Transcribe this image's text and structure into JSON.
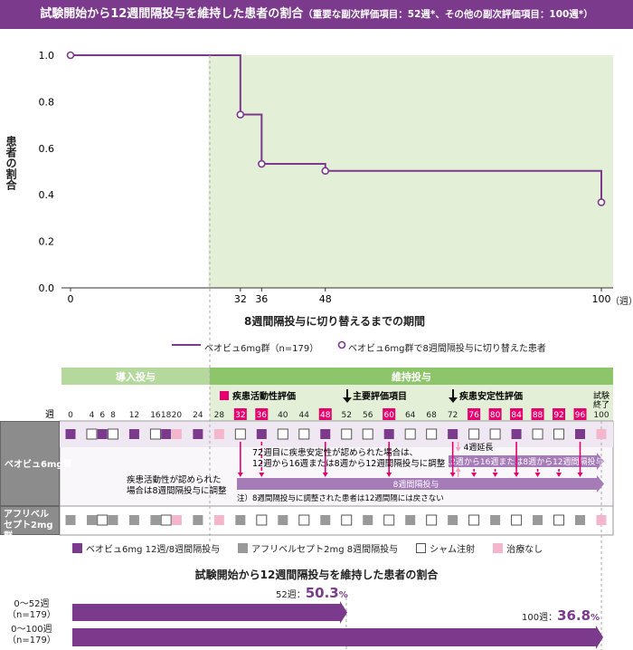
{
  "title": {
    "main": "試験開始から12週間隔投与を維持した患者の割合",
    "sub": "（重要な副次評価項目：52週*、その他の副次評価項目：100週*）"
  },
  "chart_data": {
    "type": "line",
    "ylabel": "患者の割合",
    "xlabel": "8週間隔投与に切り替えるまでの期間",
    "x_unit": "（週）",
    "ylim": [
      0,
      1.0
    ],
    "xlim": [
      0,
      100
    ],
    "yticks": [
      "0.0",
      "0.2",
      "0.4",
      "0.6",
      "0.8",
      "1.0"
    ],
    "xticks": [
      "0",
      "32",
      "36",
      "48",
      "100"
    ],
    "shaded_region_weeks": [
      26,
      100
    ],
    "series": [
      {
        "name": "ベオビュ6mg群（n=179）",
        "color": "#7b3a8c",
        "steps": [
          [
            0,
            1.0
          ],
          [
            32,
            0.745
          ],
          [
            36,
            0.533
          ],
          [
            48,
            0.503
          ],
          [
            100,
            0.368
          ]
        ]
      }
    ],
    "markers": {
      "name": "ベオビュ6mg群で8週間隔投与に切り替えた患者",
      "points": [
        [
          0,
          1.0
        ],
        [
          32,
          0.745
        ],
        [
          36,
          0.533
        ],
        [
          48,
          0.503
        ],
        [
          100,
          0.368
        ]
      ]
    }
  },
  "schedule": {
    "phase_induction": "導入投与",
    "phase_maintenance": "維持投与",
    "week_label": "週",
    "eval_activity": "疾患活動性評価",
    "primary": "主要評価項目",
    "eval_stability": "疾患安定性評価",
    "end": "試験\n終了",
    "weeks": [
      0,
      4,
      6,
      8,
      12,
      16,
      18,
      20,
      24,
      28,
      32,
      36,
      40,
      44,
      48,
      52,
      56,
      60,
      64,
      68,
      72,
      76,
      80,
      84,
      88,
      92,
      96,
      100
    ],
    "highlighted_weeks": [
      32,
      36,
      48,
      60,
      76,
      80,
      84,
      88,
      92,
      96
    ],
    "rows": [
      {
        "label": "ベオビュ6mg群",
        "cells": [
          "P",
          "W",
          "P",
          "W",
          "P",
          "W",
          "P",
          "N",
          "P",
          "N",
          "W",
          "P",
          "W",
          "W",
          "P",
          "W",
          "W",
          "P",
          "W",
          "W",
          "P",
          "W",
          "W",
          "P",
          "W",
          "W",
          "P",
          "N"
        ]
      },
      {
        "label": "アフリベルセプト2mg群",
        "cells": [
          "G",
          "G",
          "W",
          "G",
          "G",
          "G",
          "W",
          "N",
          "G",
          "N",
          "G",
          "W",
          "G",
          "W",
          "G",
          "W",
          "G",
          "W",
          "G",
          "W",
          "G",
          "W",
          "G",
          "W",
          "G",
          "W",
          "G",
          "N"
        ]
      }
    ],
    "note_activity": [
      "疾患活動性が認められた",
      "場合は8週間隔投与に調整"
    ],
    "note_stability": [
      "72週目に疾患安定性が認められた場合は、",
      "12週から16週または8週から12週間隔投与に調整"
    ],
    "extend": "4週延長",
    "bar_upper": "12週から16週または8週から12週間隔投与",
    "bar_main": "8週間隔投与",
    "footnote": "注）8週間隔投与に調整された患者は12週間隔には戻さない"
  },
  "legend": [
    {
      "label": "ベオビュ6mg 12週/8週間隔投与",
      "color": "#7b3a8c"
    },
    {
      "label": "アフリベルセプト2mg 8週間隔投与",
      "color": "#999999"
    },
    {
      "label": "シャム注射",
      "color": "#ffffff"
    },
    {
      "label": "治療なし",
      "color": "#f4b6cc"
    }
  ],
  "summary": {
    "title": "試験開始から12週間隔投与を維持した患者の割合",
    "bars": [
      {
        "range": "0～52週",
        "n": "（n=179）",
        "week": "52週：",
        "value": "50.3",
        "unit": "%"
      },
      {
        "range": "0～100週",
        "n": "（n=179）",
        "week": "100週：",
        "value": "36.8",
        "unit": "%"
      }
    ]
  },
  "colors": {
    "purple": "#7b3a8c",
    "light_purple": "#a57bb8",
    "magenta": "#e5006e",
    "green": "#8cc56a",
    "light_green": "#e3efd6"
  }
}
